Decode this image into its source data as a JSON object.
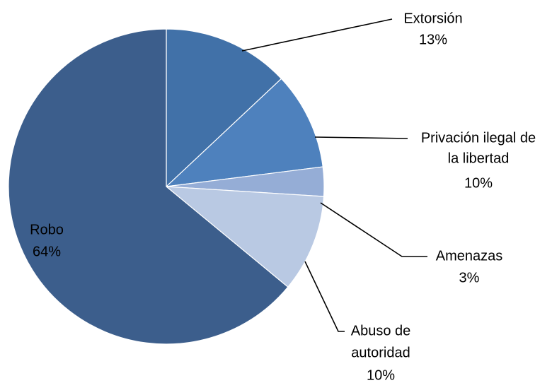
{
  "chart_data": {
    "type": "pie",
    "title": "",
    "start": "12 o'clock, clockwise",
    "slices": [
      {
        "label": "Extorsión",
        "value": 13,
        "display": "13%",
        "color": "#4171A8"
      },
      {
        "label": "Privación ilegal de la libertad",
        "label_lines": [
          "Privación ilegal de",
          "la libertad"
        ],
        "value": 10,
        "display": "10%",
        "color": "#4E81BD"
      },
      {
        "label": "Amenazas",
        "value": 3,
        "display": "3%",
        "color": "#95ADD6"
      },
      {
        "label": "Abuso de autoridad",
        "label_lines": [
          "Abuso de",
          "autoridad"
        ],
        "value": 10,
        "display": "10%",
        "color": "#B9C9E3"
      },
      {
        "label": "Robo",
        "value": 64,
        "display": "64%",
        "color": "#3C5E8C"
      }
    ]
  }
}
